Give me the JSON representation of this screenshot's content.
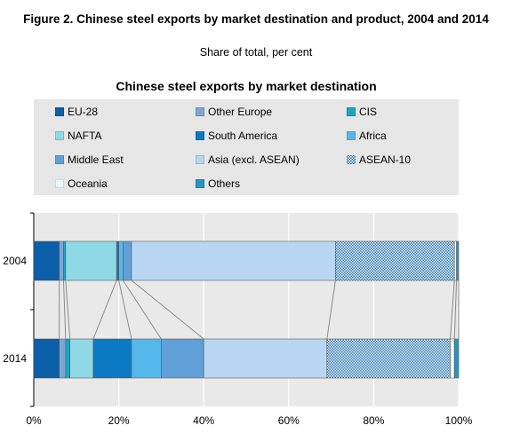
{
  "figure": {
    "title": "Figure 2. Chinese steel exports by market destination and product, 2004 and 2014",
    "subtitle": "Share of total, per cent"
  },
  "chart_data": {
    "type": "bar",
    "orientation": "horizontal",
    "stacked": true,
    "title": "Chinese steel exports by market destination",
    "categories": [
      "2004",
      "2014"
    ],
    "xlim": [
      0,
      100
    ],
    "xticks": [
      "0%",
      "20%",
      "40%",
      "60%",
      "80%",
      "100%"
    ],
    "grid": "vertical",
    "legend_position": "top",
    "series": [
      {
        "name": "EU-28",
        "color": "#0b5ea8",
        "pattern": "solid",
        "values": [
          6,
          6
        ]
      },
      {
        "name": "Other Europe",
        "color": "#7fa5cf",
        "pattern": "solid",
        "values": [
          1,
          1.5
        ]
      },
      {
        "name": "CIS",
        "color": "#1aa5c2",
        "pattern": "solid",
        "values": [
          0.5,
          1
        ]
      },
      {
        "name": "NAFTA",
        "color": "#8fd9e6",
        "pattern": "solid",
        "values": [
          12,
          5.5
        ]
      },
      {
        "name": "South America",
        "color": "#0b79c4",
        "pattern": "solid",
        "values": [
          0.5,
          9
        ]
      },
      {
        "name": "Africa",
        "color": "#55b8ea",
        "pattern": "solid",
        "values": [
          1,
          7
        ]
      },
      {
        "name": "Middle East",
        "color": "#5fa0d8",
        "pattern": "solid",
        "values": [
          2,
          10
        ]
      },
      {
        "name": "Asia (excl. ASEAN)",
        "color": "#b8d6f2",
        "pattern": "solid",
        "values": [
          48,
          29
        ]
      },
      {
        "name": "ASEAN-10",
        "color": "#1f6fb5",
        "pattern": "checker",
        "values": [
          28,
          29
        ]
      },
      {
        "name": "Oceania",
        "color": "#b9dcf2",
        "pattern": "dots",
        "values": [
          0.5,
          1
        ]
      },
      {
        "name": "Others",
        "color": "#2596be",
        "pattern": "solid",
        "values": [
          0.5,
          1
        ]
      }
    ]
  }
}
